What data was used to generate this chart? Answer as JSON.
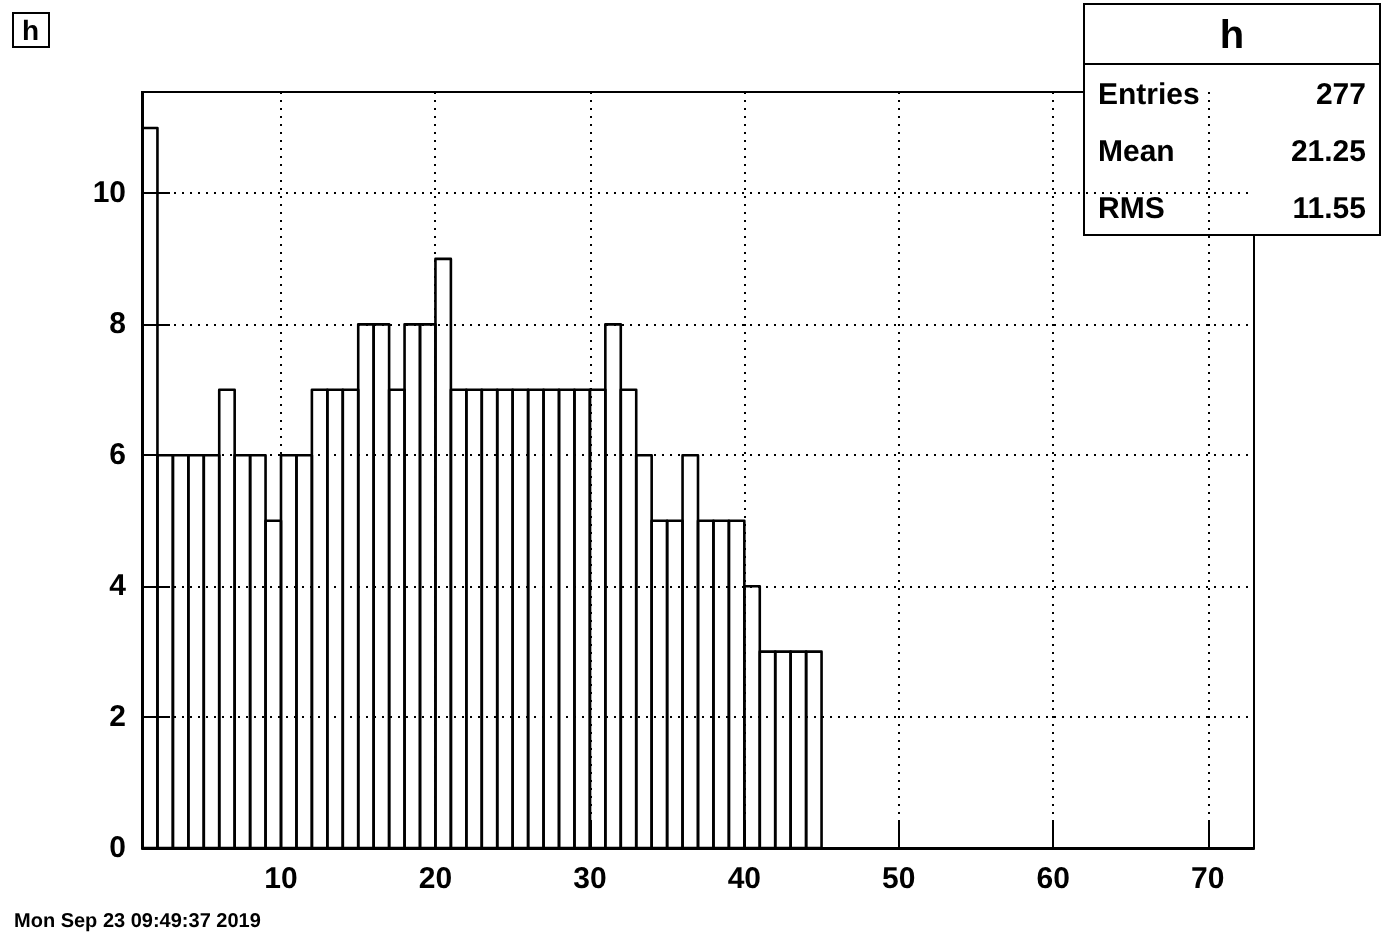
{
  "chart_data": {
    "type": "histogram",
    "title": "h",
    "bins": [
      1,
      2,
      3,
      4,
      5,
      6,
      7,
      8,
      9,
      10,
      11,
      12,
      13,
      14,
      15,
      16,
      17,
      18,
      19,
      20,
      21,
      22,
      23,
      24,
      25,
      26,
      27,
      28,
      29,
      30,
      31,
      32,
      33,
      34,
      35,
      36,
      37,
      38,
      39,
      40,
      41,
      42,
      43,
      44,
      45
    ],
    "values": [
      11,
      6,
      6,
      6,
      6,
      7,
      6,
      6,
      5,
      6,
      6,
      7,
      7,
      7,
      8,
      8,
      7,
      8,
      8,
      9,
      7,
      7,
      7,
      7,
      7,
      7,
      7,
      7,
      7,
      7,
      8,
      7,
      6,
      5,
      5,
      6,
      5,
      5,
      5,
      4,
      3,
      3,
      3,
      3
    ],
    "color": "#000000",
    "xlim": [
      1,
      73
    ],
    "xticks": [
      10,
      20,
      30,
      40,
      50,
      60,
      70
    ],
    "ylim": [
      0,
      11.55
    ],
    "yticks": [
      0,
      2,
      4,
      6,
      8,
      10
    ],
    "grid": true,
    "annotations": [
      "h",
      "Entries 277",
      "Mean 21.25",
      "RMS 11.55",
      "Mon Sep 23 09:49:37 2019"
    ]
  }
}
